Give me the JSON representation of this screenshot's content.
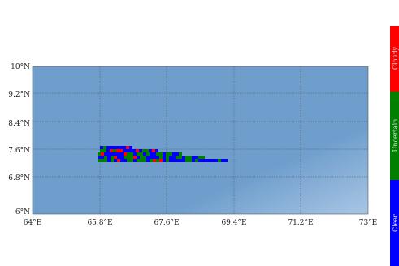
{
  "map": {
    "lon_range": [
      64,
      73
    ],
    "lat_range": [
      6,
      10
    ],
    "x_ticks": [
      "64°E",
      "65.8°E",
      "67.6°E",
      "69.4°E",
      "71.2°E",
      "73°E"
    ],
    "y_ticks": [
      "6°N",
      "6.8°N",
      "7.6°N",
      "8.4°N",
      "9.2°N",
      "10°N"
    ],
    "colors": {
      "ocean_dark": "#6d9ccc",
      "ocean_light": "#8fb6da",
      "grid": "#4a4a4a",
      "cloudy": "#ff0000",
      "uncertain": "#008000",
      "clear": "#0000ff"
    }
  },
  "legend": {
    "items": [
      {
        "label": "Cloudy",
        "color": "#ff0000"
      },
      {
        "label": "Uncertain",
        "color": "#008000"
      },
      {
        "label": "Clear",
        "color": "#0000ff"
      }
    ]
  }
}
